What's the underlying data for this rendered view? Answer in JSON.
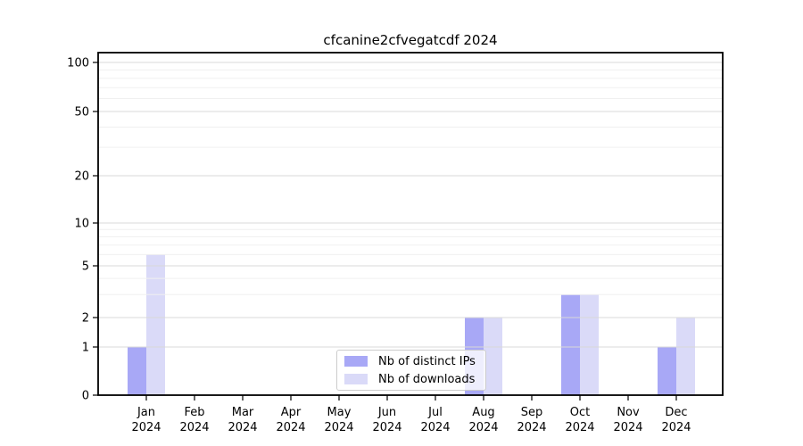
{
  "chart": {
    "title": "cfcanine2cfvegatcdf 2024"
  },
  "chart_data": {
    "type": "bar",
    "title": "cfcanine2cfvegatcdf 2024",
    "categories": [
      "Jan",
      "Feb",
      "Mar",
      "Apr",
      "May",
      "Jun",
      "Jul",
      "Aug",
      "Sep",
      "Oct",
      "Nov",
      "Dec"
    ],
    "tick_year": "2024",
    "series": [
      {
        "name": "Nb of distinct IPs",
        "color": "#a8a8f6",
        "values": [
          1,
          0,
          0,
          0,
          0,
          0,
          0,
          2,
          0,
          3,
          0,
          1
        ]
      },
      {
        "name": "Nb of downloads",
        "color": "#dadaf8",
        "values": [
          6,
          0,
          0,
          0,
          0,
          0,
          0,
          2,
          0,
          3,
          0,
          2
        ]
      }
    ],
    "yticks": [
      0,
      1,
      2,
      5,
      10,
      20,
      50,
      100
    ],
    "ytick_labels": [
      "0",
      "1",
      "2",
      "5",
      "10",
      "20",
      "50",
      "100"
    ],
    "scale": "symlog",
    "ylim": [
      0,
      120
    ],
    "grid": true,
    "legend_position": "lower center inside plot"
  },
  "legend": {
    "items": [
      {
        "label": "Nb of distinct IPs",
        "color": "#a8a8f6"
      },
      {
        "label": "Nb of downloads",
        "color": "#dadaf8"
      }
    ]
  },
  "colors": {
    "major_grid": "#d8d8d8",
    "minor_grid": "#f0f0f0",
    "spine": "#000000"
  }
}
